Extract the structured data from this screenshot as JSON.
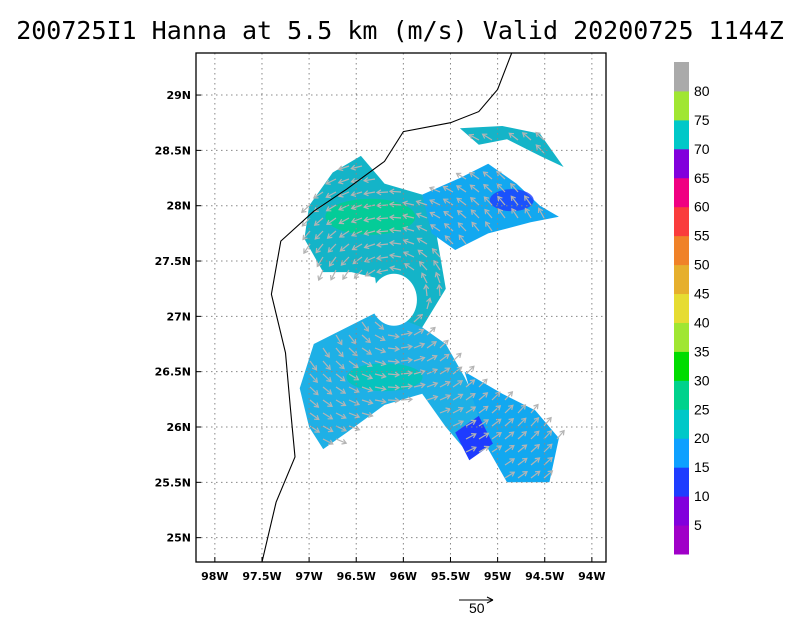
{
  "title": "200725I1 Hanna at 5.5 km (m/s) Valid 20200725 1144Z",
  "map": {
    "lon_range": [
      -98.2,
      -93.85
    ],
    "lat_range": [
      24.78,
      29.38
    ],
    "x_ticks": [
      {
        "lon": -98.0,
        "label": "98W"
      },
      {
        "lon": -97.5,
        "label": "97.5W"
      },
      {
        "lon": -97.0,
        "label": "97W"
      },
      {
        "lon": -96.5,
        "label": "96.5W"
      },
      {
        "lon": -96.0,
        "label": "96W"
      },
      {
        "lon": -95.5,
        "label": "95.5W"
      },
      {
        "lon": -95.0,
        "label": "95W"
      },
      {
        "lon": -94.5,
        "label": "94.5W"
      },
      {
        "lon": -94.0,
        "label": "94W"
      }
    ],
    "y_ticks": [
      {
        "lat": 25.0,
        "label": "25N"
      },
      {
        "lat": 25.5,
        "label": "25.5N"
      },
      {
        "lat": 26.0,
        "label": "26N"
      },
      {
        "lat": 26.5,
        "label": "26.5N"
      },
      {
        "lat": 27.0,
        "label": "27N"
      },
      {
        "lat": 27.5,
        "label": "27.5N"
      },
      {
        "lat": 28.0,
        "label": "28N"
      },
      {
        "lat": 28.5,
        "label": "28.5N"
      },
      {
        "lat": 29.0,
        "label": "29N"
      }
    ],
    "grid": true,
    "storm_center": {
      "lon": -96.1,
      "lat": 27.15
    },
    "coastline": [
      [
        -94.85,
        29.38
      ],
      [
        -95.0,
        29.05
      ],
      [
        -95.2,
        28.85
      ],
      [
        -95.5,
        28.75
      ],
      [
        -96.0,
        28.67
      ],
      [
        -96.2,
        28.4
      ],
      [
        -96.6,
        28.15
      ],
      [
        -96.95,
        27.95
      ],
      [
        -97.3,
        27.68
      ],
      [
        -97.4,
        27.2
      ],
      [
        -97.25,
        26.67
      ],
      [
        -97.2,
        26.18
      ],
      [
        -97.15,
        25.73
      ],
      [
        -97.35,
        25.32
      ],
      [
        -97.5,
        24.78
      ]
    ]
  },
  "colorbar": {
    "labels": [
      "5",
      "10",
      "15",
      "20",
      "25",
      "30",
      "35",
      "40",
      "45",
      "50",
      "55",
      "60",
      "65",
      "70",
      "75",
      "80"
    ],
    "colors": [
      "#a000c8",
      "#8200dc",
      "#1e3cff",
      "#0ea0ff",
      "#00c8c8",
      "#00d28c",
      "#00dc00",
      "#a0e632",
      "#e6dc32",
      "#e6af2d",
      "#f08228",
      "#fa3c3c",
      "#f00082",
      "#8200dc",
      "#00c8c8",
      "#a0e632",
      "#aaaaaa"
    ]
  },
  "reference_vector": {
    "label": "50"
  }
}
